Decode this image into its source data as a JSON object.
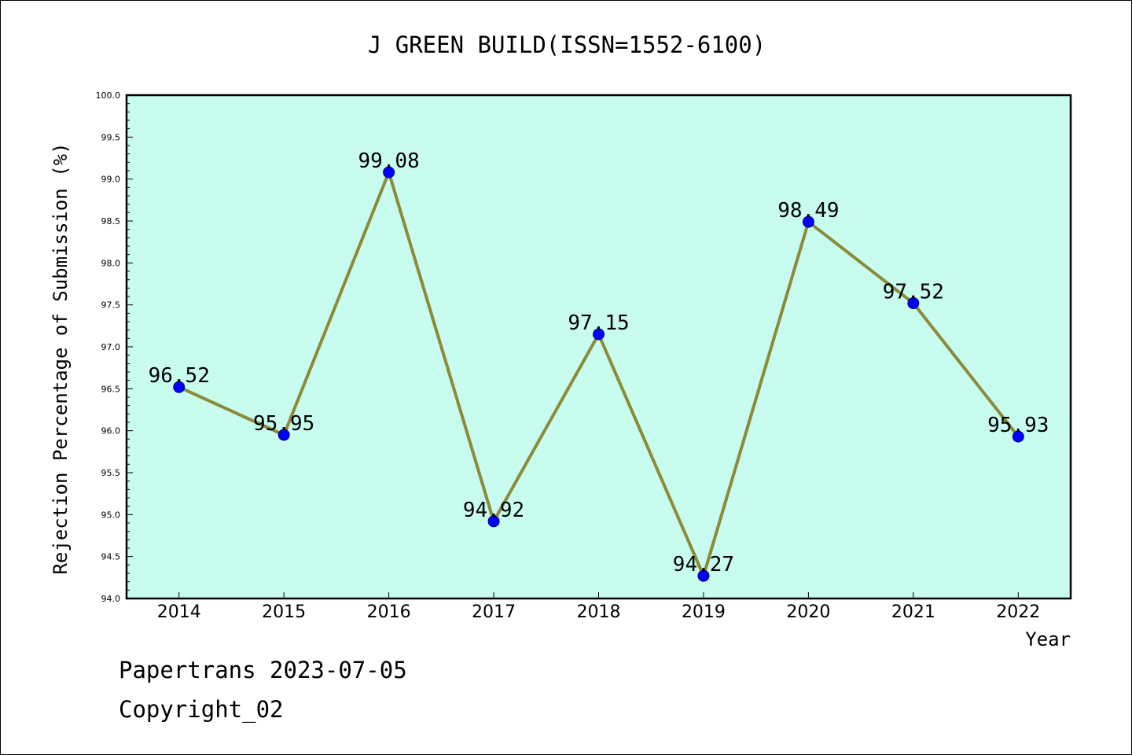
{
  "chart_data": {
    "type": "line",
    "title": "J GREEN BUILD(ISSN=1552-6100)",
    "xlabel": "Year",
    "ylabel": "Rejection Percentage of Submission (%)",
    "categories": [
      "2014",
      "2015",
      "2016",
      "2017",
      "2018",
      "2019",
      "2020",
      "2021",
      "2022"
    ],
    "series": [
      {
        "values": [
          96.52,
          95.95,
          99.08,
          94.92,
          97.15,
          94.27,
          98.49,
          97.52,
          95.93
        ],
        "labels": [
          "96.52",
          "95.95",
          "99.08",
          "94.92",
          "97.15",
          "94.27",
          "98.49",
          "97.52",
          "95.93"
        ],
        "line_color": "#8b8b3a",
        "marker_color": "#0000ff"
      }
    ],
    "ylim": [
      94.0,
      100.0
    ],
    "yticks": [
      "94.0",
      "94.5",
      "95.0",
      "95.5",
      "96.0",
      "96.5",
      "97.0",
      "97.5",
      "98.0",
      "98.5",
      "99.0",
      "99.5",
      "100.0"
    ],
    "plot_background": "#c8fcee",
    "grid": false,
    "legend": "none"
  },
  "footer": {
    "line1": "Papertrans 2023-07-05",
    "line2": "Copyright_02"
  }
}
